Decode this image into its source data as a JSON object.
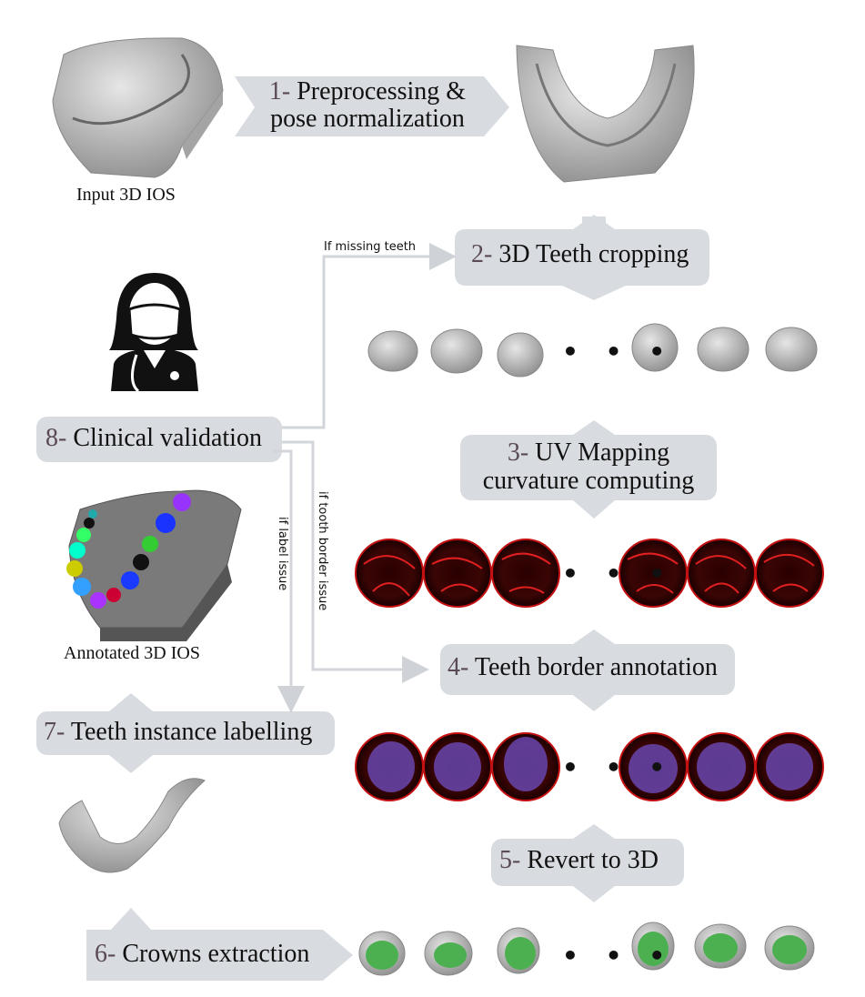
{
  "steps": {
    "s1": {
      "num": "1-",
      "line1": "Preprocessing &",
      "line2": "pose normalization"
    },
    "s2": {
      "num": "2-",
      "text": "3D Teeth cropping"
    },
    "s3": {
      "num": "3-",
      "line1": "UV Mapping",
      "line2": "curvature computing"
    },
    "s4": {
      "num": "4-",
      "text": "Teeth border annotation"
    },
    "s5": {
      "num": "5-",
      "text": "Revert to 3D"
    },
    "s6": {
      "num": "6-",
      "text": "Crowns extraction"
    },
    "s7": {
      "num": "7-",
      "text": "Teeth instance labelling"
    },
    "s8": {
      "num": "8-",
      "text": "Clinical validation"
    }
  },
  "captions": {
    "input": "Input 3D IOS",
    "annotated": "Annotated 3D IOS"
  },
  "edges": {
    "missing": "If missing teeth",
    "border": "if tooth border issue",
    "label": "if label issue"
  },
  "ellipsis": "• • •",
  "colors": {
    "box": "#d8dbe0",
    "connector": "#d0d3d8",
    "mesh": "#b7b7b7",
    "curvature": "#c41010",
    "overlay": "#5a3a9a",
    "crown": "#4caf50"
  },
  "icons": {
    "clinician": "doctor-icon"
  }
}
